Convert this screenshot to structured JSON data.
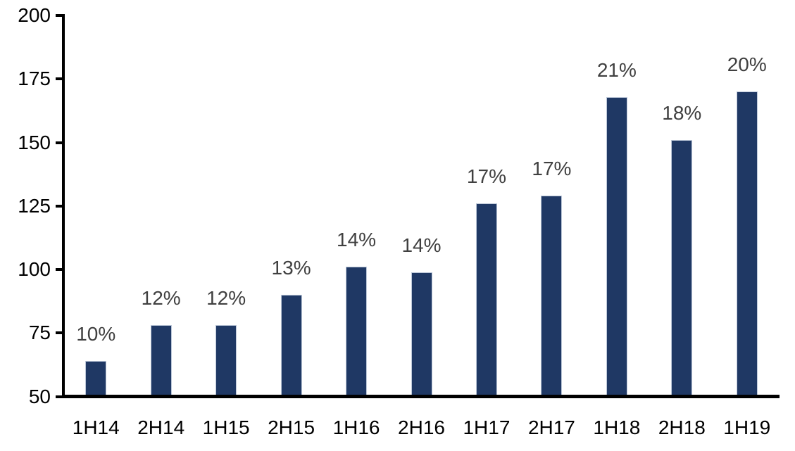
{
  "chart_data": {
    "type": "bar",
    "title": "",
    "xlabel": "",
    "ylabel": "",
    "categories": [
      "1H14",
      "2H14",
      "1H15",
      "2H15",
      "1H16",
      "2H16",
      "1H17",
      "2H17",
      "1H18",
      "2H18",
      "1H19"
    ],
    "values": [
      64,
      78,
      78,
      90,
      101,
      99,
      126,
      129,
      168,
      151,
      170
    ],
    "bar_labels": [
      "10%",
      "12%",
      "12%",
      "13%",
      "14%",
      "14%",
      "17%",
      "17%",
      "21%",
      "18%",
      "20%"
    ],
    "ylim": [
      50,
      200
    ],
    "yticks": [
      50,
      75,
      100,
      125,
      150,
      175,
      200
    ],
    "grid": false,
    "legend_position": "none",
    "colors": {
      "bar_fill": "#1f3864",
      "bar_border": "#bcc7d8",
      "data_label_text": "#404040",
      "axis_text": "#000000",
      "axis_line": "#000000",
      "background": "#ffffff"
    }
  }
}
